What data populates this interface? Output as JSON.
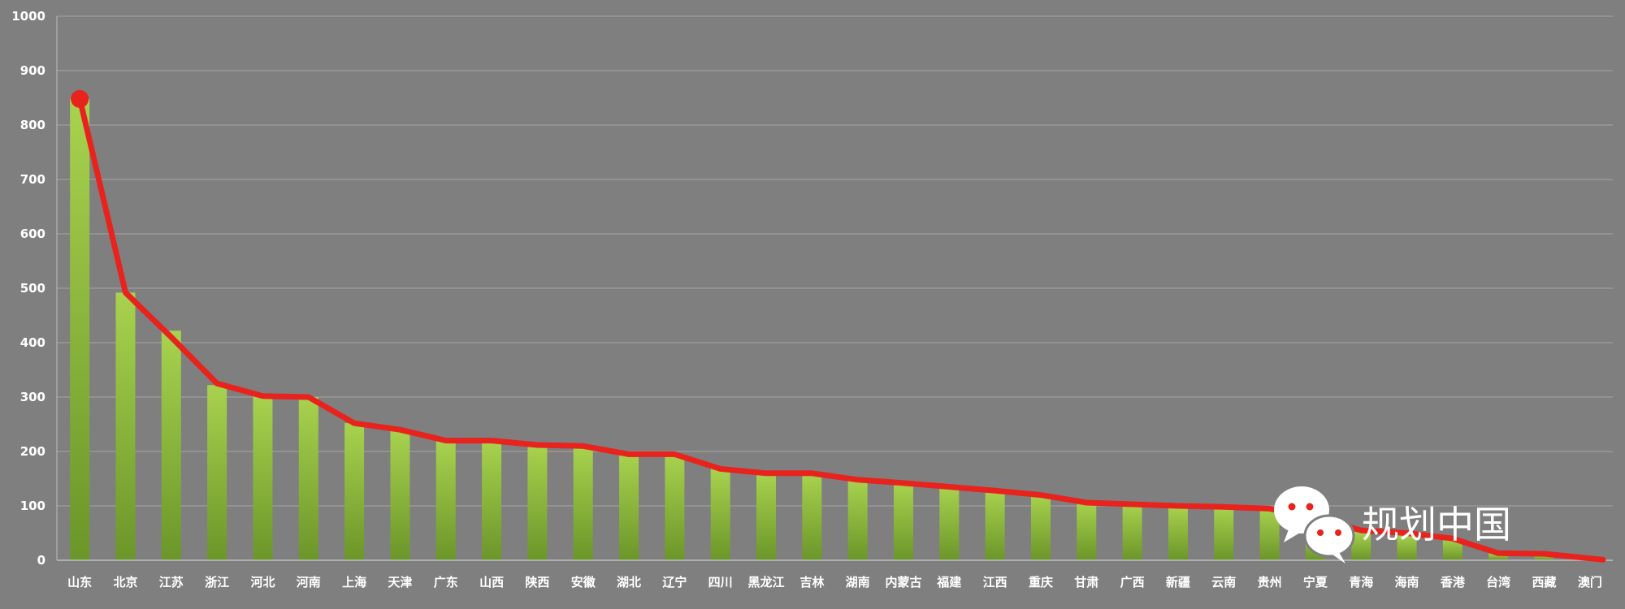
{
  "chart_data": {
    "type": "bar",
    "categories": [
      "山东",
      "北京",
      "江苏",
      "浙江",
      "河北",
      "河南",
      "上海",
      "天津",
      "广东",
      "山西",
      "陕西",
      "安徽",
      "湖北",
      "辽宁",
      "四川",
      "黑龙江",
      "吉林",
      "湖南",
      "内蒙古",
      "福建",
      "江西",
      "重庆",
      "甘肃",
      "广西",
      "新疆",
      "云南",
      "贵州",
      "宁夏",
      "青海",
      "海南",
      "香港",
      "台湾",
      "西藏",
      "澳门"
    ],
    "values": [
      848,
      492,
      422,
      322,
      302,
      300,
      252,
      240,
      220,
      220,
      212,
      210,
      195,
      195,
      168,
      160,
      160,
      148,
      142,
      135,
      128,
      122,
      108,
      104,
      100,
      98,
      96,
      60,
      53,
      47,
      40,
      13,
      12,
      3
    ],
    "line_values": [
      848,
      492,
      410,
      325,
      302,
      300,
      252,
      240,
      220,
      220,
      212,
      210,
      195,
      195,
      168,
      160,
      160,
      148,
      142,
      135,
      128,
      120,
      106,
      103,
      100,
      98,
      95,
      78,
      55,
      50,
      40,
      13,
      12,
      1
    ],
    "yticks": [
      "0",
      "100",
      "200",
      "300",
      "400",
      "500",
      "600",
      "700",
      "800",
      "900",
      "1000"
    ],
    "ylim": [
      0,
      1000
    ],
    "title": "",
    "xlabel": "",
    "ylabel": "",
    "grid": true,
    "colors": {
      "background": "#7f7f7f",
      "bar_top": "#a4cd4a",
      "bar_bottom": "#6e9a2a",
      "line": "#e8231e",
      "grid": "#a6a6a6",
      "text": "#ffffff"
    }
  },
  "watermark": {
    "text": "规划中国",
    "icon": "wechat-icon"
  }
}
